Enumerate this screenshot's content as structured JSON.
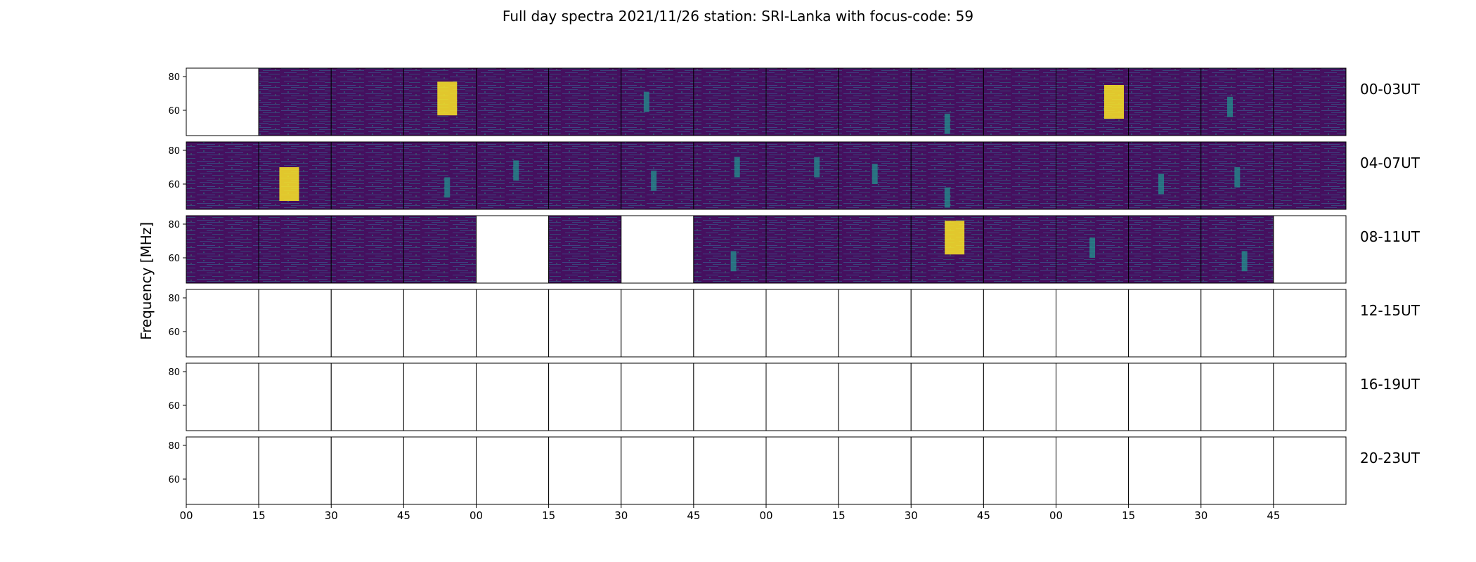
{
  "chart_data": {
    "type": "heatmap",
    "title": "Full day spectra 2021/11/26 station: SRI-Lanka with focus-code: 59",
    "ylabel": "Frequency [MHz]",
    "xlabel": "",
    "yticks": [
      60,
      80
    ],
    "ylim": [
      45,
      85
    ],
    "xticks": [
      "00",
      "15",
      "30",
      "45",
      "00",
      "15",
      "30",
      "45",
      "00",
      "15",
      "30",
      "45",
      "00",
      "15",
      "30",
      "45"
    ],
    "colormap": {
      "low": "#440154",
      "mid": "#21918c",
      "high": "#fde725"
    },
    "rows": [
      {
        "label": "00-03UT",
        "panels": [
          {
            "has_data": false,
            "bright_band": null
          },
          {
            "has_data": true,
            "bright_band": null
          },
          {
            "has_data": true,
            "bright_band": null
          },
          {
            "has_data": true,
            "bright_band": {
              "x": 0.6,
              "freq": 67,
              "hot": true
            }
          },
          {
            "has_data": true,
            "bright_band": null
          },
          {
            "has_data": true,
            "bright_band": null
          },
          {
            "has_data": true,
            "bright_band": {
              "x": 0.35,
              "freq": 65,
              "hot": false
            }
          },
          {
            "has_data": true,
            "bright_band": null
          },
          {
            "has_data": true,
            "bright_band": null
          },
          {
            "has_data": true,
            "bright_band": null
          },
          {
            "has_data": true,
            "bright_band": {
              "x": 0.5,
              "freq": 52,
              "hot": false
            }
          },
          {
            "has_data": true,
            "bright_band": null
          },
          {
            "has_data": true,
            "bright_band": {
              "x": 0.8,
              "freq": 65,
              "hot": true
            }
          },
          {
            "has_data": true,
            "bright_band": null
          },
          {
            "has_data": true,
            "bright_band": {
              "x": 0.4,
              "freq": 62,
              "hot": false
            }
          },
          {
            "has_data": true,
            "bright_band": null
          }
        ]
      },
      {
        "label": "04-07UT",
        "panels": [
          {
            "has_data": true,
            "bright_band": null
          },
          {
            "has_data": true,
            "bright_band": {
              "x": 0.42,
              "freq": 60,
              "hot": true
            }
          },
          {
            "has_data": true,
            "bright_band": null
          },
          {
            "has_data": true,
            "bright_band": {
              "x": 0.6,
              "freq": 58,
              "hot": false
            }
          },
          {
            "has_data": true,
            "bright_band": {
              "x": 0.55,
              "freq": 68,
              "hot": false
            }
          },
          {
            "has_data": true,
            "bright_band": null
          },
          {
            "has_data": true,
            "bright_band": {
              "x": 0.45,
              "freq": 62,
              "hot": false
            }
          },
          {
            "has_data": true,
            "bright_band": {
              "x": 0.6,
              "freq": 70,
              "hot": false
            }
          },
          {
            "has_data": true,
            "bright_band": {
              "x": 0.7,
              "freq": 70,
              "hot": false
            }
          },
          {
            "has_data": true,
            "bright_band": {
              "x": 0.5,
              "freq": 66,
              "hot": false
            }
          },
          {
            "has_data": true,
            "bright_band": {
              "x": 0.5,
              "freq": 52,
              "hot": false
            }
          },
          {
            "has_data": true,
            "bright_band": null
          },
          {
            "has_data": true,
            "bright_band": null
          },
          {
            "has_data": true,
            "bright_band": {
              "x": 0.45,
              "freq": 60,
              "hot": false
            }
          },
          {
            "has_data": true,
            "bright_band": {
              "x": 0.5,
              "freq": 64,
              "hot": false
            }
          },
          {
            "has_data": true,
            "bright_band": null
          }
        ]
      },
      {
        "label": "08-11UT",
        "panels": [
          {
            "has_data": true,
            "bright_band": null
          },
          {
            "has_data": true,
            "bright_band": null
          },
          {
            "has_data": true,
            "bright_band": null
          },
          {
            "has_data": true,
            "bright_band": null
          },
          {
            "has_data": false,
            "bright_band": null
          },
          {
            "has_data": true,
            "bright_band": null
          },
          {
            "has_data": false,
            "bright_band": null
          },
          {
            "has_data": true,
            "bright_band": {
              "x": 0.55,
              "freq": 58,
              "hot": false
            }
          },
          {
            "has_data": true,
            "bright_band": null
          },
          {
            "has_data": true,
            "bright_band": null
          },
          {
            "has_data": true,
            "bright_band": {
              "x": 0.6,
              "freq": 72,
              "hot": true
            }
          },
          {
            "has_data": true,
            "bright_band": null
          },
          {
            "has_data": true,
            "bright_band": {
              "x": 0.5,
              "freq": 66,
              "hot": false
            }
          },
          {
            "has_data": true,
            "bright_band": null
          },
          {
            "has_data": true,
            "bright_band": {
              "x": 0.6,
              "freq": 58,
              "hot": false
            }
          },
          {
            "has_data": false,
            "bright_band": null
          }
        ]
      },
      {
        "label": "12-15UT",
        "panels": [
          {
            "has_data": false,
            "bright_band": null
          },
          {
            "has_data": false,
            "bright_band": null
          },
          {
            "has_data": false,
            "bright_band": null
          },
          {
            "has_data": false,
            "bright_band": null
          },
          {
            "has_data": false,
            "bright_band": null
          },
          {
            "has_data": false,
            "bright_band": null
          },
          {
            "has_data": false,
            "bright_band": null
          },
          {
            "has_data": false,
            "bright_band": null
          },
          {
            "has_data": false,
            "bright_band": null
          },
          {
            "has_data": false,
            "bright_band": null
          },
          {
            "has_data": false,
            "bright_band": null
          },
          {
            "has_data": false,
            "bright_band": null
          },
          {
            "has_data": false,
            "bright_band": null
          },
          {
            "has_data": false,
            "bright_band": null
          },
          {
            "has_data": false,
            "bright_band": null
          },
          {
            "has_data": false,
            "bright_band": null
          }
        ]
      },
      {
        "label": "16-19UT",
        "panels": [
          {
            "has_data": false,
            "bright_band": null
          },
          {
            "has_data": false,
            "bright_band": null
          },
          {
            "has_data": false,
            "bright_band": null
          },
          {
            "has_data": false,
            "bright_band": null
          },
          {
            "has_data": false,
            "bright_band": null
          },
          {
            "has_data": false,
            "bright_band": null
          },
          {
            "has_data": false,
            "bright_band": null
          },
          {
            "has_data": false,
            "bright_band": null
          },
          {
            "has_data": false,
            "bright_band": null
          },
          {
            "has_data": false,
            "bright_band": null
          },
          {
            "has_data": false,
            "bright_band": null
          },
          {
            "has_data": false,
            "bright_band": null
          },
          {
            "has_data": false,
            "bright_band": null
          },
          {
            "has_data": false,
            "bright_band": null
          },
          {
            "has_data": false,
            "bright_band": null
          },
          {
            "has_data": false,
            "bright_band": null
          }
        ]
      },
      {
        "label": "20-23UT",
        "panels": [
          {
            "has_data": false,
            "bright_band": null
          },
          {
            "has_data": false,
            "bright_band": null
          },
          {
            "has_data": false,
            "bright_band": null
          },
          {
            "has_data": false,
            "bright_band": null
          },
          {
            "has_data": false,
            "bright_band": null
          },
          {
            "has_data": false,
            "bright_band": null
          },
          {
            "has_data": false,
            "bright_band": null
          },
          {
            "has_data": false,
            "bright_band": null
          },
          {
            "has_data": false,
            "bright_band": null
          },
          {
            "has_data": false,
            "bright_band": null
          },
          {
            "has_data": false,
            "bright_band": null
          },
          {
            "has_data": false,
            "bright_band": null
          },
          {
            "has_data": false,
            "bright_band": null
          },
          {
            "has_data": false,
            "bright_band": null
          },
          {
            "has_data": false,
            "bright_band": null
          },
          {
            "has_data": false,
            "bright_band": null
          }
        ]
      }
    ]
  }
}
